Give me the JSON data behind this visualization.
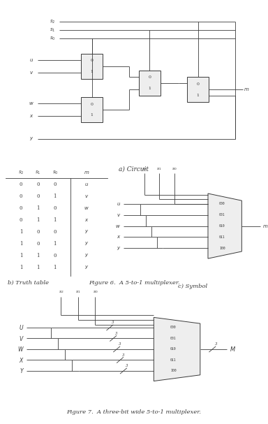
{
  "bg_color": "#ffffff",
  "text_color": "#3a3a3a",
  "line_color": "#3a3a3a",
  "fig_width": 3.84,
  "fig_height": 6.07,
  "fig6_caption": "Figure 6.  A 5-to-1 multiplexer.",
  "fig7_caption": "Figure 7.  A three-bit wide 5-to-1 multiplexer.",
  "caption_a": "a) Circuit",
  "caption_b": "b) Truth table",
  "caption_c": "c) Symbol",
  "truth_rows": [
    [
      "0",
      "0",
      "0",
      "u"
    ],
    [
      "0",
      "0",
      "1",
      "v"
    ],
    [
      "0",
      "1",
      "0",
      "w"
    ],
    [
      "0",
      "1",
      "1",
      "x"
    ],
    [
      "1",
      "0",
      "0",
      "y"
    ],
    [
      "1",
      "0",
      "1",
      "y"
    ],
    [
      "1",
      "1",
      "0",
      "y"
    ],
    [
      "1",
      "1",
      "1",
      "y"
    ]
  ],
  "mux_binary_5to1": [
    "000",
    "001",
    "010",
    "011",
    "100"
  ],
  "output_label": "m",
  "fig7_sel_labels": [
    "s2",
    "s1",
    "s0"
  ],
  "fig7_data_labels": [
    "U",
    "V",
    "W",
    "X",
    "Y"
  ],
  "fig7_bus_label": "3",
  "fig7_output_label": "M",
  "fig7_binary": [
    "000",
    "001",
    "010",
    "011",
    "100"
  ]
}
